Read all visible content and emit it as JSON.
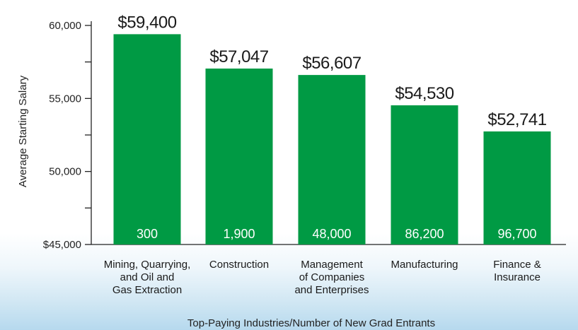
{
  "chart_data": {
    "type": "bar",
    "ylabel": "Average Starting Salary",
    "xlabel": "Top-Paying Industries/Number of New Grad Entrants",
    "ylim": [
      45000,
      60000
    ],
    "y_ticks": [
      "$45,000",
      "50,000",
      "55,000",
      "60,000"
    ],
    "y_tick_values": [
      45000,
      50000,
      55000,
      60000
    ],
    "y_minor_values": [
      47500,
      52500,
      57500
    ],
    "grid": false,
    "bar_color": "#009a44",
    "categories": [
      [
        "Mining, Quarrying,",
        "and Oil and",
        "Gas Extraction"
      ],
      [
        "Construction"
      ],
      [
        "Management",
        "of Companies",
        "and Enterprises"
      ],
      [
        "Manufacturing"
      ],
      [
        "Finance &",
        "Insurance"
      ]
    ],
    "values": [
      59400,
      57047,
      56607,
      54530,
      52741
    ],
    "value_labels": [
      "$59,400",
      "$57,047",
      "$56,607",
      "$54,530",
      "$52,741"
    ],
    "entrant_labels": [
      "300",
      "1,900",
      "48,000",
      "86,200",
      "96,700"
    ]
  }
}
